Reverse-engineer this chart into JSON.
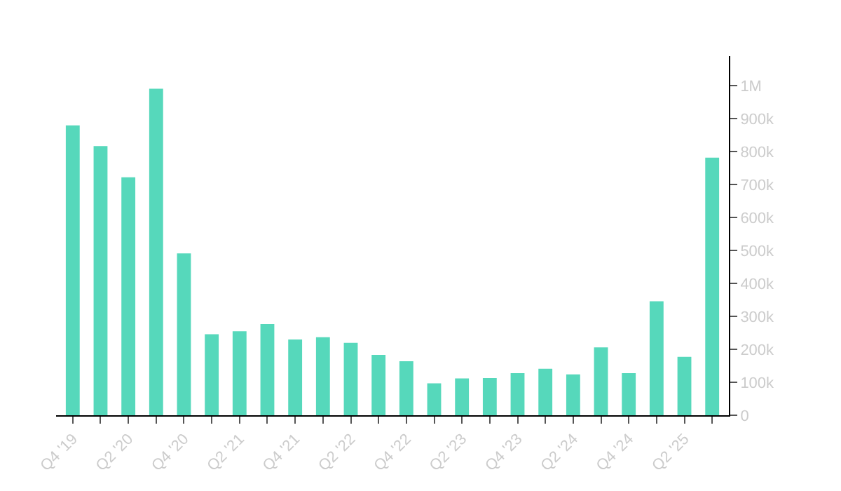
{
  "chart_data": {
    "type": "bar",
    "categories": [
      "Q4 '19",
      null,
      "Q2 '20",
      null,
      "Q4 '20",
      null,
      "Q2 '21",
      null,
      "Q4 '21",
      null,
      "Q2 '22",
      null,
      "Q4 '22",
      null,
      "Q2 '23",
      null,
      "Q4 '23",
      null,
      "Q2 '24",
      null,
      "Q4 '24",
      null,
      "Q2 '25",
      null
    ],
    "values": [
      880000,
      817000,
      722000,
      991000,
      491000,
      246000,
      255000,
      277000,
      230000,
      237000,
      220000,
      183000,
      164000,
      97000,
      112000,
      113000,
      128000,
      141000,
      124000,
      206000,
      128000,
      346000,
      177000,
      782000
    ],
    "color": "#56d8bb",
    "ylim": [
      0,
      1090000
    ],
    "yticks": [
      0,
      {
        "value": 100000,
        "label": "100k"
      },
      {
        "value": 200000,
        "label": "200k"
      },
      {
        "value": 300000,
        "label": "300k"
      },
      {
        "value": 400000,
        "label": "400k"
      },
      {
        "value": 500000,
        "label": "500k"
      },
      {
        "value": 600000,
        "label": "600k"
      },
      {
        "value": 700000,
        "label": "700k"
      },
      {
        "value": 800000,
        "label": "800k"
      },
      {
        "value": 900000,
        "label": "900k"
      },
      {
        "value": 1000000,
        "label": "1M"
      }
    ]
  }
}
